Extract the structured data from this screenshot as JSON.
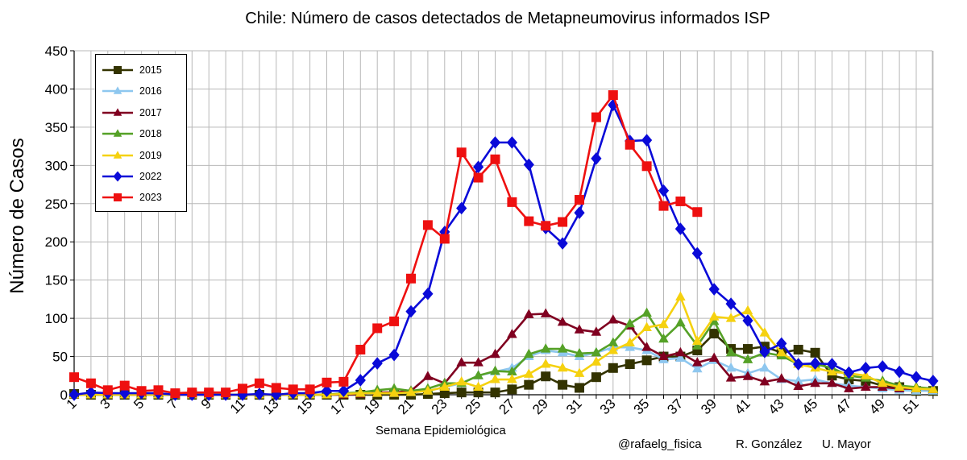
{
  "chart_data": {
    "type": "line",
    "title": "Chile: Número de casos detectados de Metapneumovirus informados ISP",
    "xlabel": "Semana Epidemiológica",
    "ylabel": "Número de Casos",
    "xlim": [
      1,
      52
    ],
    "ylim": [
      0,
      450
    ],
    "yticks": [
      "0",
      "50",
      "100",
      "150",
      "200",
      "250",
      "300",
      "350",
      "400",
      "450"
    ],
    "xticks": [
      "1",
      "3",
      "5",
      "7",
      "9",
      "11",
      "13",
      "15",
      "17",
      "19",
      "21",
      "23",
      "25",
      "27",
      "29",
      "31",
      "33",
      "35",
      "37",
      "39",
      "41",
      "43",
      "45",
      "47",
      "49",
      "51"
    ],
    "grid": true,
    "legend_position": "top-left",
    "series": [
      {
        "name": "2015",
        "color": "#333300",
        "marker": "square",
        "values": [
          1,
          0,
          0,
          0,
          0,
          0,
          0,
          0,
          0,
          0,
          0,
          0,
          0,
          0,
          0,
          0,
          0,
          0,
          0,
          0,
          0,
          1,
          2,
          3,
          3,
          3,
          7,
          13,
          24,
          13,
          9,
          23,
          35,
          40,
          45,
          50,
          50,
          58,
          80,
          60,
          60,
          63,
          55,
          59,
          55,
          25,
          20,
          18,
          12,
          10,
          5,
          5
        ]
      },
      {
        "name": "2016",
        "color": "#8ec7ef",
        "marker": "triangle",
        "values": [
          0,
          0,
          0,
          0,
          0,
          0,
          0,
          0,
          0,
          0,
          0,
          0,
          0,
          0,
          0,
          0,
          0,
          1,
          2,
          2,
          3,
          5,
          10,
          15,
          25,
          30,
          35,
          50,
          58,
          55,
          50,
          55,
          62,
          62,
          58,
          46,
          48,
          34,
          45,
          35,
          28,
          35,
          20,
          18,
          20,
          15,
          12,
          10,
          8,
          6,
          5,
          5
        ]
      },
      {
        "name": "2017",
        "color": "#800020",
        "marker": "triangle",
        "values": [
          0,
          0,
          0,
          0,
          0,
          0,
          0,
          0,
          0,
          0,
          0,
          0,
          0,
          0,
          0,
          0,
          0,
          1,
          3,
          3,
          5,
          24,
          15,
          42,
          42,
          53,
          79,
          105,
          106,
          95,
          85,
          82,
          98,
          90,
          62,
          50,
          55,
          42,
          48,
          22,
          24,
          17,
          21,
          11,
          15,
          15,
          8,
          10,
          10,
          8,
          8,
          7
        ]
      },
      {
        "name": "2018",
        "color": "#55a127",
        "marker": "triangle",
        "values": [
          0,
          0,
          0,
          0,
          0,
          0,
          0,
          0,
          0,
          0,
          0,
          0,
          0,
          0,
          0,
          0,
          2,
          3,
          6,
          8,
          5,
          8,
          15,
          15,
          25,
          31,
          30,
          53,
          60,
          60,
          54,
          55,
          68,
          93,
          107,
          73,
          94,
          64,
          96,
          55,
          46,
          55,
          51,
          40,
          40,
          35,
          25,
          22,
          18,
          12,
          10,
          8
        ]
      },
      {
        "name": "2019",
        "color": "#f5d10f",
        "marker": "triangle",
        "values": [
          0,
          0,
          0,
          0,
          0,
          0,
          0,
          0,
          0,
          0,
          0,
          0,
          0,
          0,
          0,
          0,
          1,
          2,
          2,
          2,
          3,
          5,
          10,
          17,
          10,
          20,
          20,
          27,
          40,
          35,
          28,
          43,
          58,
          68,
          88,
          92,
          128,
          70,
          102,
          100,
          110,
          81,
          55,
          40,
          35,
          30,
          28,
          25,
          15,
          10,
          8,
          7
        ]
      },
      {
        "name": "2022",
        "color": "#0a0ad8",
        "marker": "diamond",
        "values": [
          0,
          3,
          2,
          2,
          2,
          2,
          0,
          0,
          0,
          0,
          0,
          1,
          0,
          2,
          2,
          5,
          5,
          19,
          41,
          52,
          109,
          132,
          213,
          244,
          298,
          330,
          330,
          301,
          218,
          198,
          238,
          309,
          379,
          332,
          333,
          267,
          217,
          185,
          138,
          119,
          97,
          56,
          67,
          40,
          41,
          40,
          29,
          35,
          37,
          30,
          23,
          18
        ]
      },
      {
        "name": "2023",
        "color": "#ee1010",
        "marker": "square",
        "values": [
          23,
          15,
          6,
          12,
          5,
          6,
          2,
          3,
          3,
          3,
          8,
          15,
          9,
          7,
          7,
          16,
          17,
          59,
          87,
          96,
          152,
          222,
          204,
          317,
          284,
          308,
          252,
          227,
          221,
          226,
          255,
          363,
          392,
          327,
          299,
          247,
          253,
          239,
          null,
          null,
          null,
          null,
          null,
          null,
          null,
          null,
          null,
          null,
          null,
          null,
          null,
          null
        ]
      }
    ]
  },
  "credits": {
    "handle": "@rafaelg_fisica",
    "author": "R. González",
    "institution": "U. Mayor"
  }
}
